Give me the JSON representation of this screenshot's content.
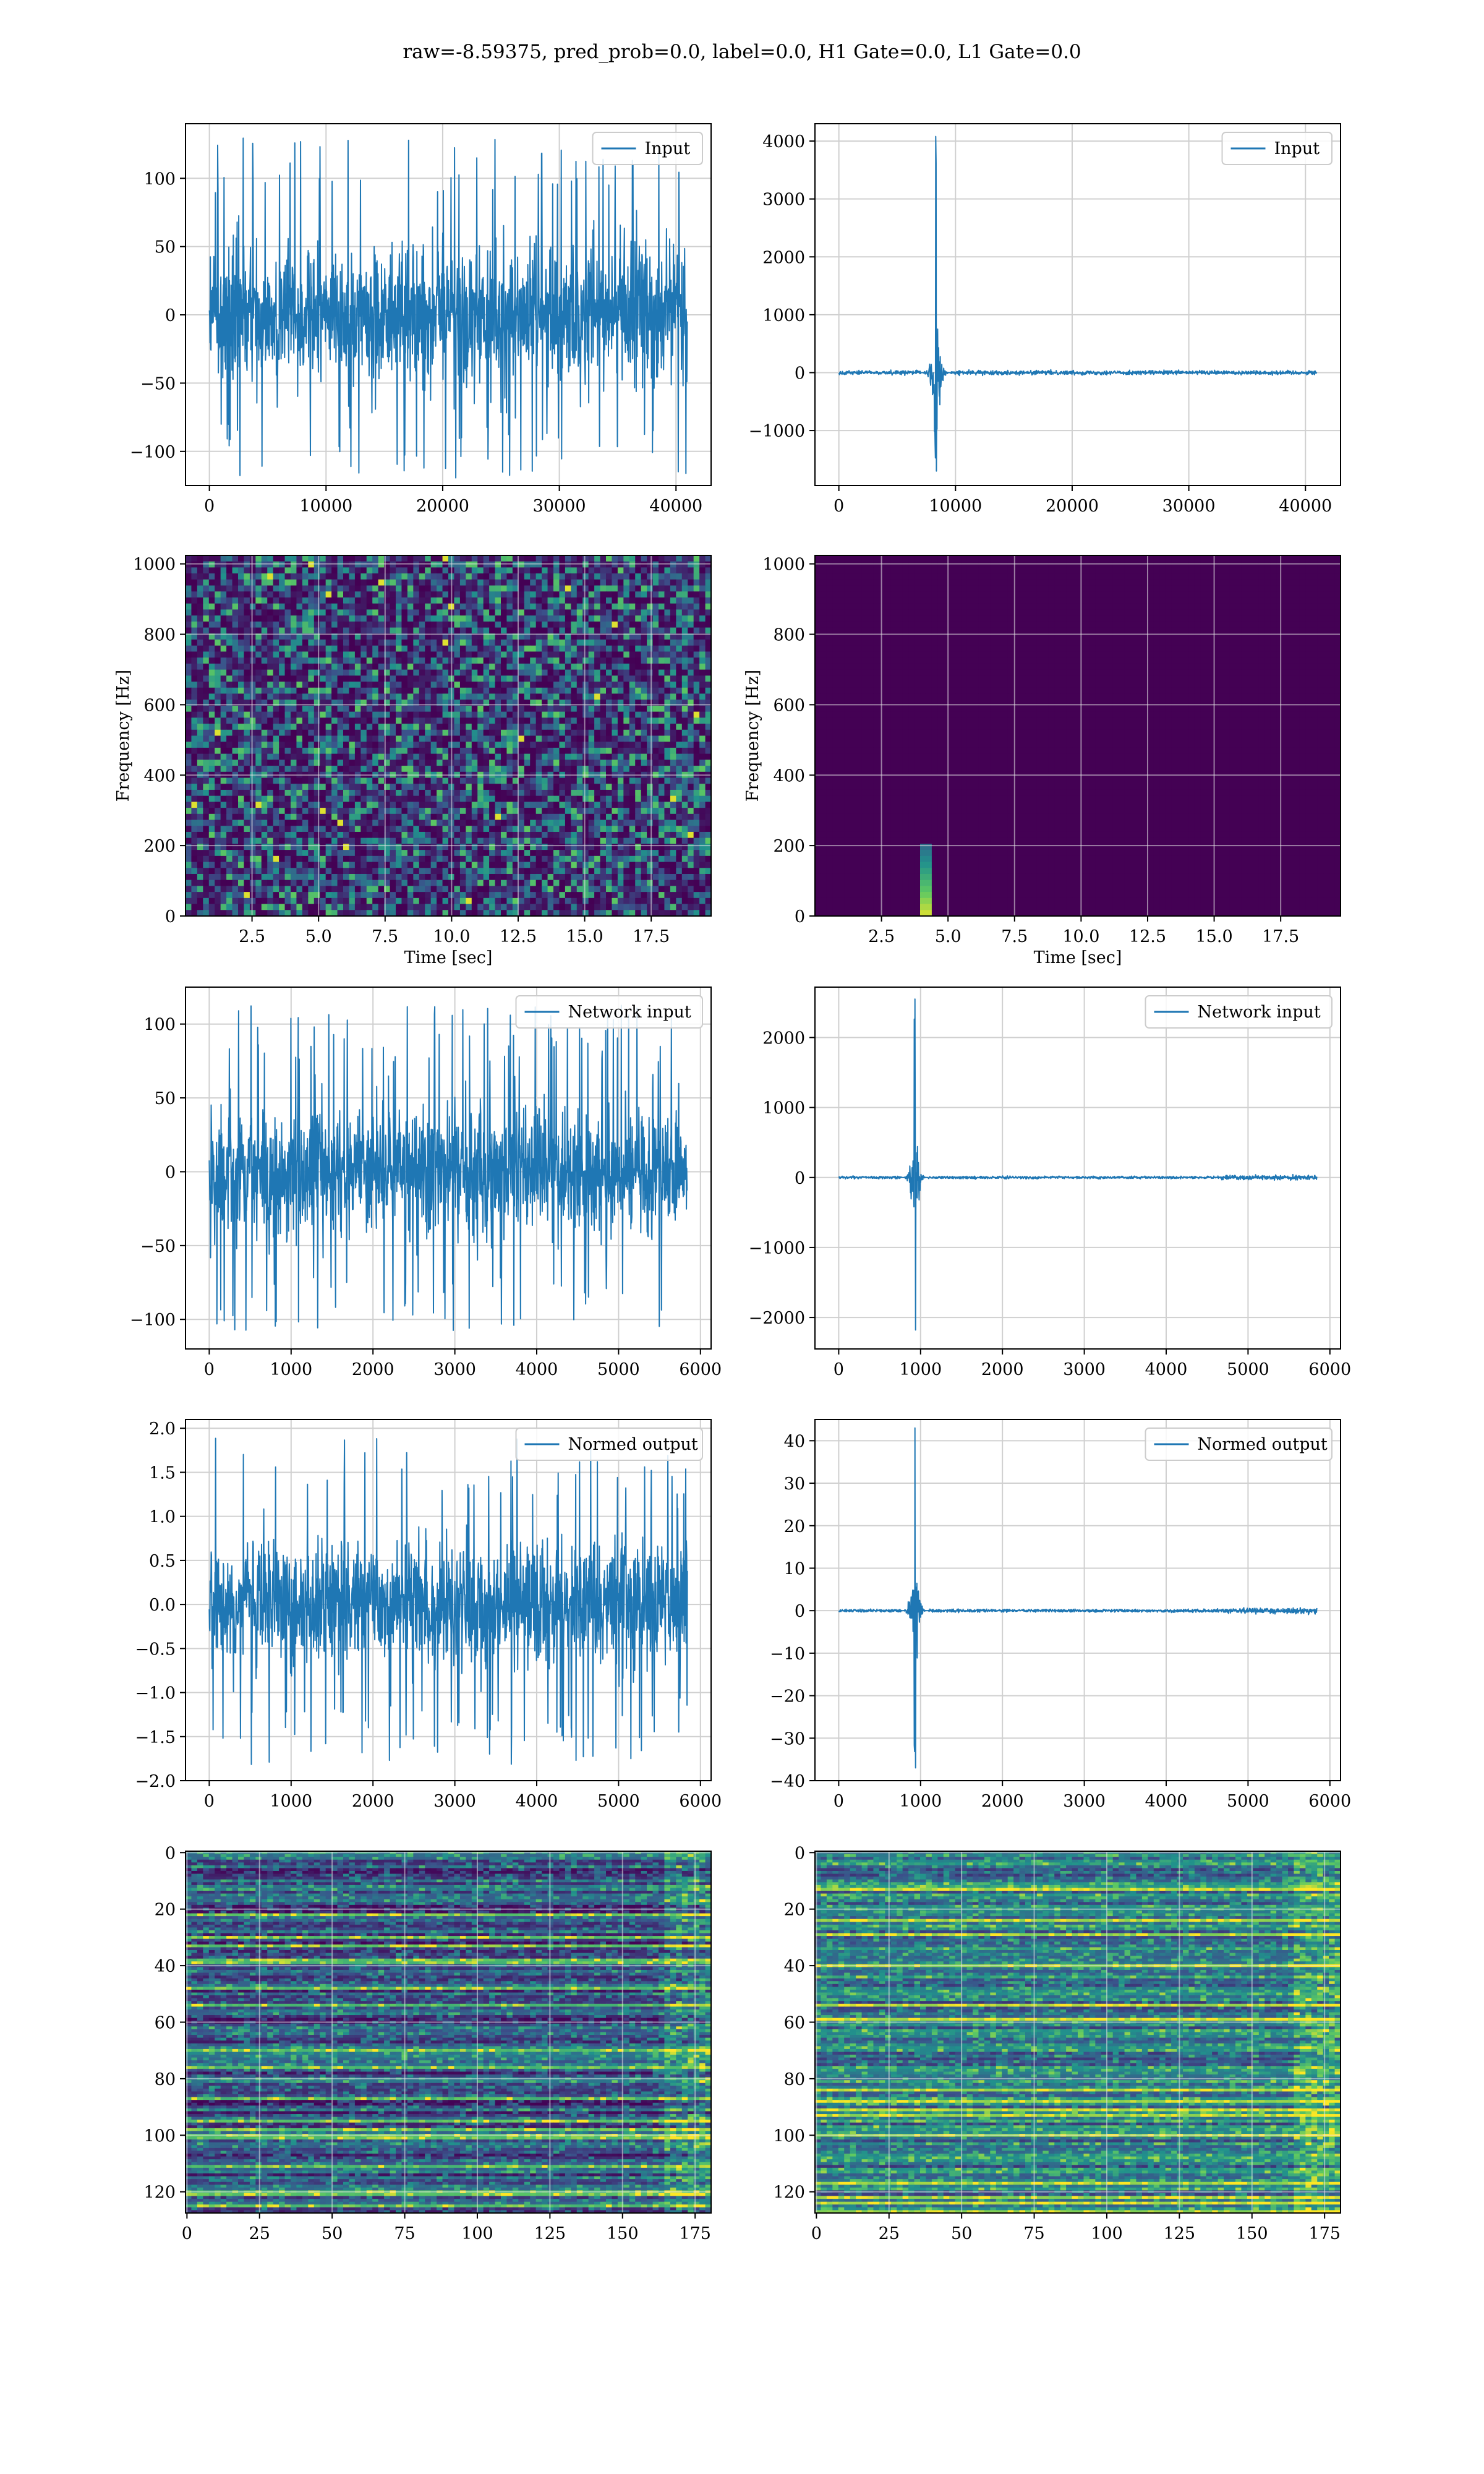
{
  "figure_title": "raw=-8.59375, pred_prob=0.0, label=0.0, H1 Gate=0.0, L1 Gate=0.0",
  "colors": {
    "line": "#1f77b4",
    "grid": "#d0d0d0",
    "viridis": [
      "#440154",
      "#3b528b",
      "#21918c",
      "#5ec962",
      "#fde725"
    ]
  },
  "chart_data": [
    {
      "id": "h1-input",
      "type": "line",
      "signal": "noise",
      "x": [
        0,
        40960
      ],
      "xlim": [
        -2048,
        43008
      ],
      "ylim": [
        -125,
        140
      ],
      "xticks": [
        0,
        10000,
        20000,
        30000,
        40000
      ],
      "yticks": [
        -100,
        -50,
        0,
        50,
        100
      ],
      "xlabel": "",
      "ylabel": "",
      "envelope": {
        "core": 60,
        "peak_max": 130,
        "peak_min": -120
      },
      "series": [
        {
          "name": "Input"
        }
      ],
      "legend": "upper right",
      "grid": true
    },
    {
      "id": "l1-input",
      "type": "line",
      "signal": "glitch",
      "x": [
        0,
        40960
      ],
      "xlim": [
        -2048,
        43008
      ],
      "ylim": [
        -1950,
        4300
      ],
      "xticks": [
        0,
        10000,
        20000,
        30000,
        40000
      ],
      "yticks": [
        -1000,
        0,
        1000,
        2000,
        3000,
        4000
      ],
      "xlabel": "",
      "ylabel": "",
      "envelope": {
        "core": 50,
        "glitch_center": 8300,
        "glitch_width": 1300,
        "glitch_max": 4080,
        "glitch_min": -1700,
        "late_core": 50
      },
      "series": [
        {
          "name": "Input"
        }
      ],
      "legend": "upper right",
      "grid": true
    },
    {
      "id": "h1-spectrogram",
      "type": "heatmap",
      "pattern": "noise",
      "xlim": [
        0,
        19.75
      ],
      "ylim": [
        0,
        1024
      ],
      "xticks": [
        2.5,
        5.0,
        7.5,
        10.0,
        12.5,
        15.0,
        17.5
      ],
      "xtick_labels": [
        "2.5",
        "5.0",
        "7.5",
        "10.0",
        "12.5",
        "15.0",
        "17.5"
      ],
      "yticks": [
        0,
        200,
        400,
        600,
        800,
        1000
      ],
      "xlabel": "Time [sec]",
      "ylabel": "Frequency [Hz]",
      "grid": true
    },
    {
      "id": "l1-spectrogram",
      "type": "heatmap",
      "pattern": "glitch",
      "glitch_time": 4.1,
      "glitch_freq_max": 200,
      "xlim": [
        0,
        19.75
      ],
      "ylim": [
        0,
        1024
      ],
      "xticks": [
        2.5,
        5.0,
        7.5,
        10.0,
        12.5,
        15.0,
        17.5
      ],
      "xtick_labels": [
        "2.5",
        "5.0",
        "7.5",
        "10.0",
        "12.5",
        "15.0",
        "17.5"
      ],
      "yticks": [
        0,
        200,
        400,
        600,
        800,
        1000
      ],
      "xlabel": "Time [sec]",
      "ylabel": "Frequency [Hz]",
      "grid": true
    },
    {
      "id": "h1-network-input",
      "type": "line",
      "signal": "noise",
      "x": [
        0,
        5840
      ],
      "xlim": [
        -290,
        6130
      ],
      "ylim": [
        -120,
        125
      ],
      "xticks": [
        0,
        1000,
        2000,
        3000,
        4000,
        5000,
        6000
      ],
      "yticks": [
        -100,
        -50,
        0,
        50,
        100
      ],
      "xlabel": "",
      "ylabel": "",
      "envelope": {
        "core": 50,
        "peak_max": 113,
        "peak_min": -108
      },
      "series": [
        {
          "name": "Network input"
        }
      ],
      "legend": "upper right",
      "grid": true
    },
    {
      "id": "l1-network-input",
      "type": "line",
      "signal": "glitch",
      "x": [
        0,
        5840
      ],
      "xlim": [
        -290,
        6130
      ],
      "ylim": [
        -2450,
        2720
      ],
      "xticks": [
        0,
        1000,
        2000,
        3000,
        4000,
        5000,
        6000
      ],
      "yticks": [
        -2000,
        -1000,
        0,
        1000,
        2000
      ],
      "xlabel": "",
      "ylabel": "",
      "envelope": {
        "core": 25,
        "glitch_center": 930,
        "glitch_width": 160,
        "glitch_max": 2550,
        "glitch_min": -2180,
        "late_core": 45
      },
      "series": [
        {
          "name": "Network input"
        }
      ],
      "legend": "upper right",
      "grid": true
    },
    {
      "id": "h1-normed-output",
      "type": "line",
      "signal": "noise",
      "x": [
        0,
        5840
      ],
      "xlim": [
        -290,
        6130
      ],
      "ylim": [
        -2.0,
        2.1
      ],
      "xticks": [
        0,
        1000,
        2000,
        3000,
        4000,
        5000,
        6000
      ],
      "yticks": [
        -2.0,
        -1.5,
        -1.0,
        -0.5,
        0.0,
        0.5,
        1.0,
        1.5,
        2.0
      ],
      "ytick_labels": [
        "−2.0",
        "−1.5",
        "−1.0",
        "−0.5",
        "0.0",
        "0.5",
        "1.0",
        "1.5",
        "2.0"
      ],
      "xlabel": "",
      "ylabel": "",
      "envelope": {
        "core": 0.8,
        "peak_max": 1.9,
        "peak_min": -1.82
      },
      "series": [
        {
          "name": "Normed output"
        }
      ],
      "legend": "upper right",
      "grid": true
    },
    {
      "id": "l1-normed-output",
      "type": "line",
      "signal": "glitch",
      "x": [
        0,
        5840
      ],
      "xlim": [
        -290,
        6130
      ],
      "ylim": [
        -40,
        45
      ],
      "xticks": [
        0,
        1000,
        2000,
        3000,
        4000,
        5000,
        6000
      ],
      "yticks": [
        -40,
        -30,
        -20,
        -10,
        0,
        10,
        20,
        30,
        40
      ],
      "xlabel": "",
      "ylabel": "",
      "envelope": {
        "core": 0.5,
        "glitch_center": 930,
        "glitch_width": 160,
        "glitch_max": 43,
        "glitch_min": -37,
        "late_core": 0.9
      },
      "series": [
        {
          "name": "Normed output"
        }
      ],
      "legend": "upper right",
      "grid": true
    },
    {
      "id": "h1-embedding",
      "type": "heatmap",
      "pattern": "bands",
      "rows": 128,
      "cols": 181,
      "xlim": [
        -0.5,
        180.5
      ],
      "ylim": [
        127.5,
        -0.5
      ],
      "xticks": [
        0,
        25,
        50,
        75,
        100,
        125,
        150,
        175
      ],
      "yticks": [
        0,
        20,
        40,
        60,
        80,
        100,
        120
      ],
      "xlabel": "",
      "ylabel": "",
      "grid": true
    },
    {
      "id": "l1-embedding",
      "type": "heatmap",
      "pattern": "bands-bright",
      "rows": 128,
      "cols": 181,
      "xlim": [
        -0.5,
        180.5
      ],
      "ylim": [
        127.5,
        -0.5
      ],
      "xticks": [
        0,
        25,
        50,
        75,
        100,
        125,
        150,
        175
      ],
      "yticks": [
        0,
        20,
        40,
        60,
        80,
        100,
        120
      ],
      "xlabel": "",
      "ylabel": "",
      "grid": true
    }
  ]
}
